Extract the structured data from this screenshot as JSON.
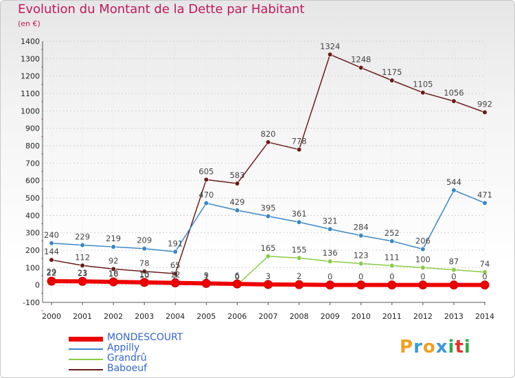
{
  "header": {
    "title": "Evolution du Montant de la Dette par Habitant",
    "subtitle": "(en €)"
  },
  "brand": {
    "letters": [
      "P",
      "r",
      "o",
      "x",
      "i",
      "t",
      "i"
    ],
    "colors": [
      "#f0a020",
      "#3a9ad9",
      "#f0a020",
      "#3a9ad9",
      "#2eaa4a",
      "#e8302a",
      "#2eaa4a"
    ]
  },
  "chart_data": {
    "type": "line",
    "title": "Evolution du Montant de la Dette par Habitant",
    "subtitle": "(en €)",
    "x": [
      "2000",
      "2001",
      "2002",
      "2003",
      "2004",
      "2005",
      "2006",
      "2007",
      "2008",
      "2009",
      "2010",
      "2011",
      "2012",
      "2013",
      "2014"
    ],
    "ylim": [
      -100,
      1400
    ],
    "yticks": [
      "-100",
      "0",
      "100",
      "200",
      "300",
      "400",
      "500",
      "600",
      "700",
      "800",
      "900",
      "1000",
      "1100",
      "1200",
      "1300",
      "1400"
    ],
    "legend_position": "bottom-left",
    "series": [
      {
        "name": "Baboeuf",
        "color": "#6b1a1a",
        "values": [
          144,
          112,
          92,
          78,
          65,
          605,
          583,
          820,
          778,
          1324,
          1248,
          1175,
          1105,
          1056,
          992
        ],
        "labels": [
          "144",
          "112",
          "92",
          "78",
          "65",
          "605",
          "583",
          "820",
          "778",
          "1324",
          "1248",
          "1175",
          "1105",
          "1056",
          "992"
        ]
      },
      {
        "name": "Appilly",
        "color": "#3a86c8",
        "values": [
          240,
          229,
          219,
          209,
          191,
          470,
          429,
          395,
          361,
          321,
          284,
          252,
          206,
          544,
          471
        ],
        "labels": [
          "240",
          "229",
          "219",
          "209",
          "191",
          "470",
          "429",
          "395",
          "361",
          "321",
          "284",
          "252",
          "206",
          "544",
          "471"
        ]
      },
      {
        "name": "Grandrû",
        "color": "#88cc44",
        "values": [
          29,
          23,
          16,
          10,
          2,
          1,
          0,
          165,
          155,
          136,
          123,
          111,
          100,
          87,
          74
        ],
        "labels": [
          "29",
          "23",
          "16",
          "10",
          "2",
          "1",
          "0",
          "165",
          "155",
          "136",
          "123",
          "111",
          "100",
          "87",
          "74"
        ]
      },
      {
        "name": "MONDESCOURT",
        "color": "#ee0000",
        "values": [
          22,
          21,
          18,
          15,
          12,
          9,
          6,
          3,
          2,
          0,
          0,
          0,
          0,
          0,
          0
        ],
        "labels": [
          "22",
          "21",
          "18",
          "15",
          "12",
          "9",
          "6",
          "3",
          "2",
          "0",
          "0",
          "0",
          "0",
          "0",
          "0"
        ]
      }
    ],
    "legend": [
      {
        "name": "MONDESCOURT",
        "color": "#ee0000"
      },
      {
        "name": "Appilly",
        "color": "#3a86c8"
      },
      {
        "name": "Grandrû",
        "color": "#88cc44"
      },
      {
        "name": "Baboeuf",
        "color": "#6b1a1a"
      }
    ]
  }
}
